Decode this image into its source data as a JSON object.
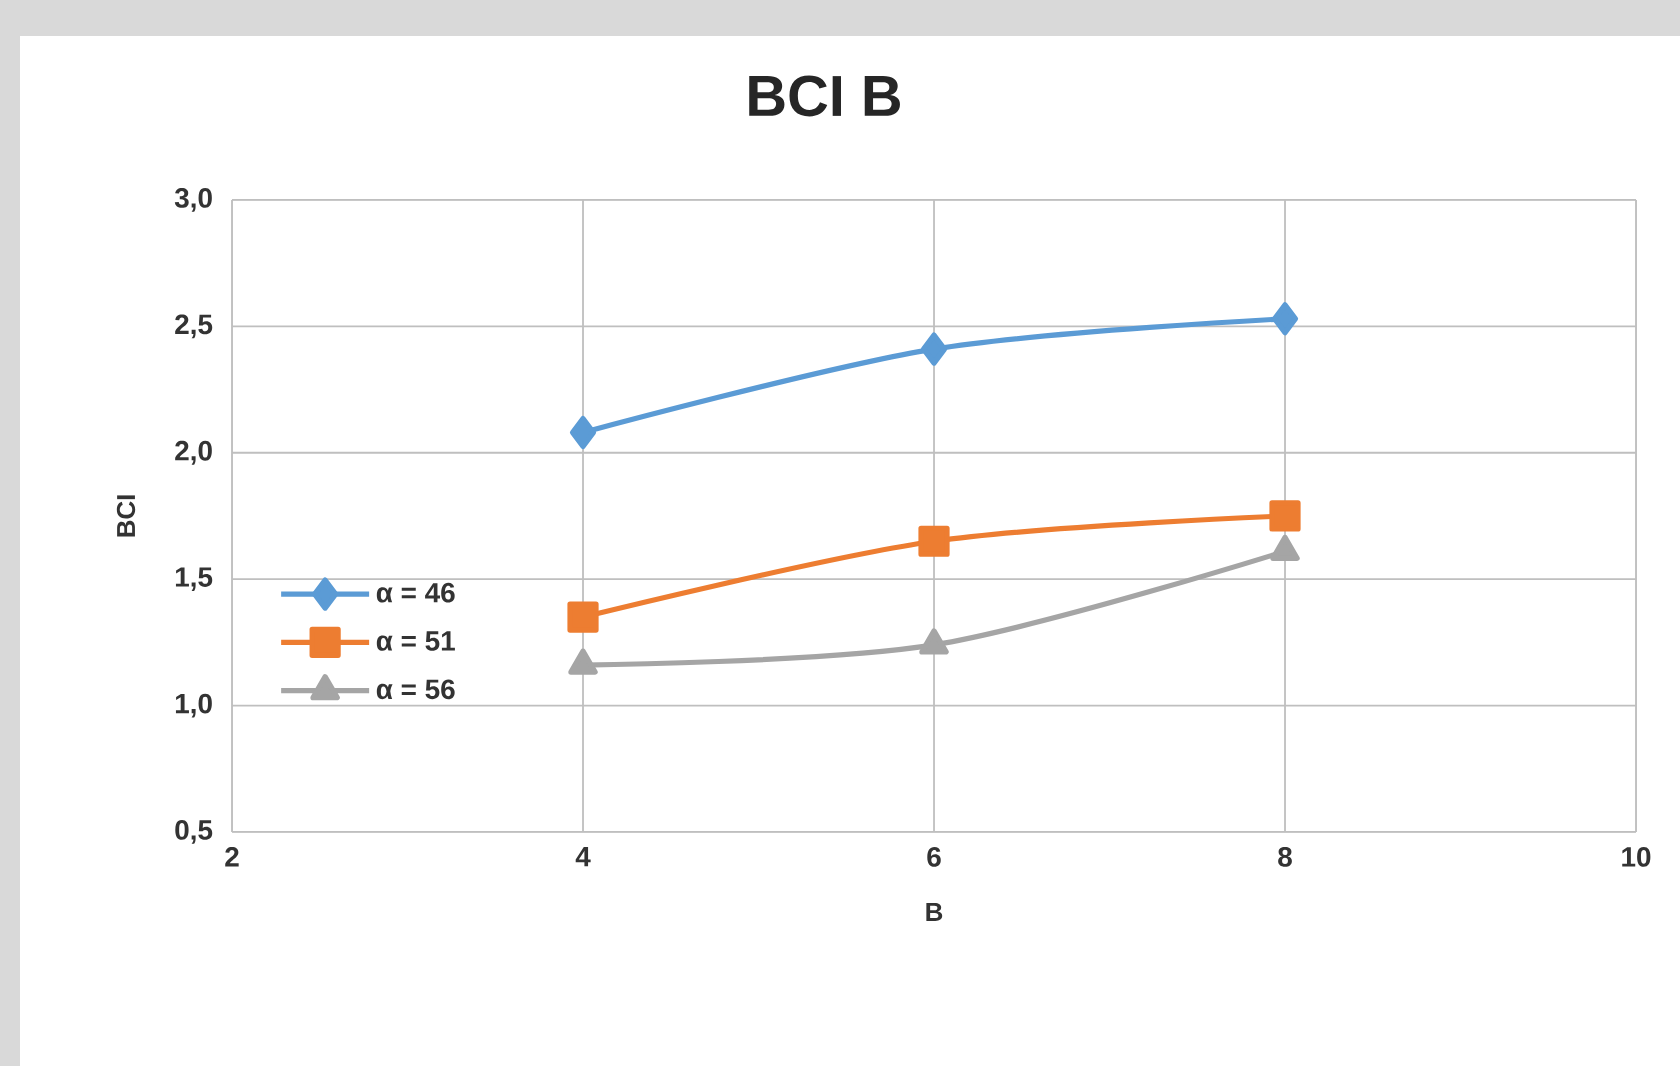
{
  "chart_data": {
    "type": "line",
    "title": "BCI B",
    "xlabel": "B",
    "ylabel": "BCI",
    "x": [
      4,
      6,
      8
    ],
    "series": [
      {
        "name": "α = 46",
        "color": "#5b9bd5",
        "marker": "diamond",
        "values": [
          2.08,
          2.41,
          2.53
        ]
      },
      {
        "name": "α = 51",
        "color": "#ed7d31",
        "marker": "square",
        "values": [
          1.35,
          1.65,
          1.75
        ]
      },
      {
        "name": "α = 56",
        "color": "#a5a5a5",
        "marker": "triangle",
        "values": [
          1.16,
          1.24,
          1.61
        ]
      }
    ],
    "xlim": [
      2,
      10
    ],
    "xticks": [
      2,
      4,
      6,
      8,
      10
    ],
    "ylim": [
      0.5,
      3.0
    ],
    "yticks": [
      {
        "value": 0.5,
        "label": "0,5"
      },
      {
        "value": 1.0,
        "label": "1,0"
      },
      {
        "value": 1.5,
        "label": "1,5"
      },
      {
        "value": 2.0,
        "label": "2,0"
      },
      {
        "value": 2.5,
        "label": "2,5"
      },
      {
        "value": 3.0,
        "label": "3,0"
      }
    ],
    "grid": true,
    "legend": "left",
    "line_style": "solid"
  }
}
